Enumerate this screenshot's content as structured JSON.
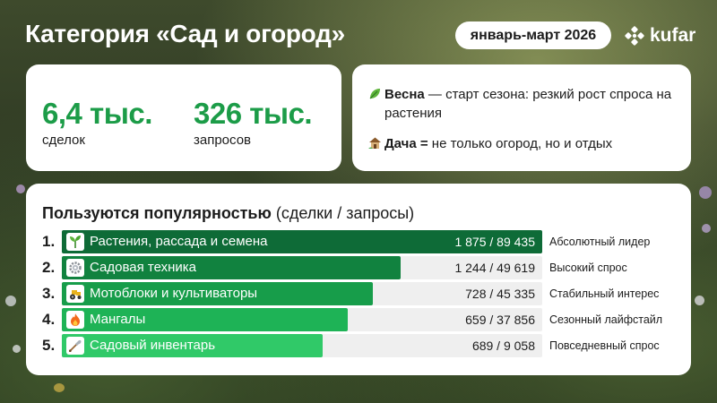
{
  "header": {
    "title": "Категория «Сад и огород»",
    "period": "январь-март 2026",
    "logo_text": "kufar"
  },
  "stats": [
    {
      "value": "6,4 тыс.",
      "label": "сделок"
    },
    {
      "value": "326 тыс.",
      "label": "запросов"
    }
  ],
  "notes": [
    {
      "icon": "leaf-icon",
      "bold": "Весна",
      "text": " — старт сезона: резкий рост спроса на растения"
    },
    {
      "icon": "house-icon",
      "bold": "Дача =",
      "text": " не только огород, но и отдых"
    }
  ],
  "popular": {
    "heading_bold": "Пользуются популярностью",
    "heading_rest": " (сделки / запросы)"
  },
  "colors": {
    "accent": "#1c9c48",
    "bar_1": "#0e6b37",
    "bar_2": "#11823f",
    "bar_3": "#179d4a",
    "bar_4": "#1eb356",
    "bar_5": "#30c968",
    "track": "#efefef"
  },
  "chart_data": {
    "type": "bar",
    "orientation": "horizontal",
    "categories": [
      "Растения, рассада и семена",
      "Садовая техника",
      "Мотоблоки и культиваторы",
      "Мангалы",
      "Садовый инвентарь"
    ],
    "ranks": [
      "1.",
      "2.",
      "3.",
      "4.",
      "5."
    ],
    "icons": [
      "sprout-icon",
      "gear-icon",
      "tractor-icon",
      "fire-icon",
      "shovel-icon"
    ],
    "series": [
      {
        "name": "сделки",
        "values": [
          1875,
          1244,
          728,
          659,
          689
        ]
      },
      {
        "name": "запросы",
        "values": [
          89435,
          49619,
          45335,
          37856,
          9058
        ]
      }
    ],
    "value_labels": [
      "1 875 / 89 435",
      "1 244 / 49 619",
      "728 / 45 335",
      "659 / 37 856",
      "689 / 9 058"
    ],
    "descriptions": [
      "Абсолютный лидер",
      "Высокий спрос",
      "Стабильный интерес",
      "Сезонный лайфстайл",
      "Повседневный спрос"
    ],
    "bar_share": [
      1.0,
      0.705,
      0.648,
      0.596,
      0.542
    ]
  }
}
